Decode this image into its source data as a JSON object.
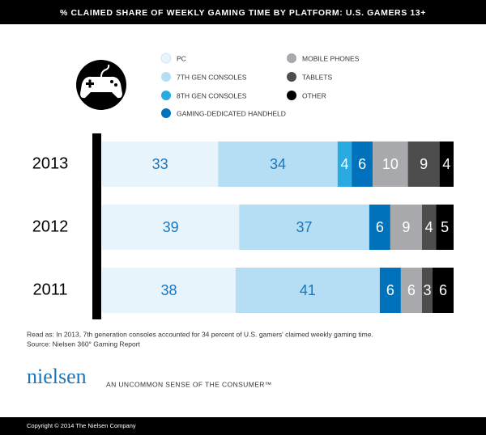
{
  "chart_data": {
    "type": "stacked-bar-horizontal",
    "title": "% CLAIMED SHARE OF WEEKLY GAMING TIME BY PLATFORM: U.S. GAMERS 13+",
    "categories": [
      "2013",
      "2012",
      "2011"
    ],
    "xlim": [
      0,
      100
    ],
    "series": [
      {
        "name": "PC",
        "color": "#e8f4fc",
        "values": [
          33,
          39,
          38
        ]
      },
      {
        "name": "7TH GEN CONSOLES",
        "color": "#b5def5",
        "values": [
          34,
          37,
          41
        ]
      },
      {
        "name": "8TH GEN CONSOLES",
        "color": "#29abe2",
        "values": [
          4,
          null,
          null
        ]
      },
      {
        "name": "GAMING-DEDICATED HANDHELD",
        "color": "#0072bc",
        "values": [
          6,
          6,
          6
        ]
      },
      {
        "name": "MOBILE PHONES",
        "color": "#a7a9ac",
        "values": [
          10,
          9,
          6
        ]
      },
      {
        "name": "TABLETS",
        "color": "#4d4d4d",
        "values": [
          9,
          4,
          3
        ]
      },
      {
        "name": "OTHER",
        "color": "#000000",
        "values": [
          4,
          5,
          6
        ]
      }
    ],
    "note": "Read as: In 2013, 7th generation consoles accounted for 34 percent of U.S. gamers' claimed weekly gaming time.",
    "source": "Source: Nielsen 360° Gaming Report"
  },
  "brand": {
    "logo": "nielsen",
    "tagline": "AN UNCOMMON SENSE OF THE CONSUMER™"
  },
  "copyright": "Copyright © 2014 The Nielsen Company"
}
